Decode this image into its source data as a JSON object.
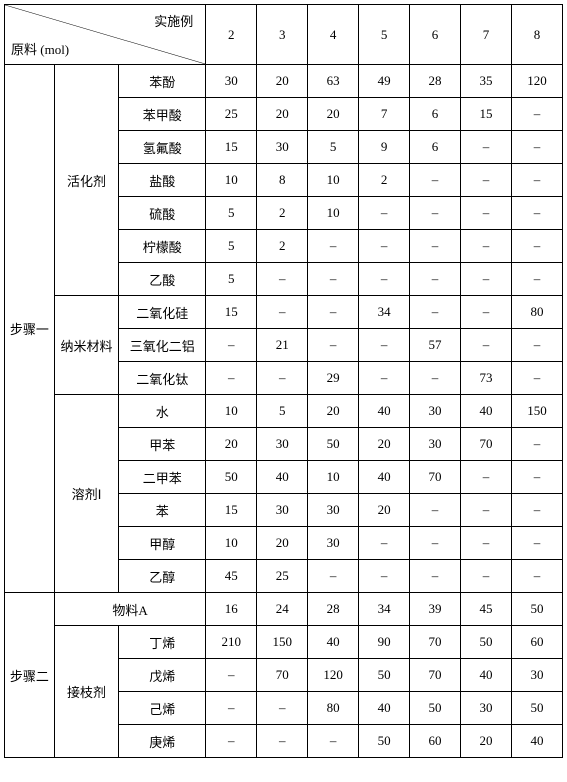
{
  "header": {
    "diagonal_top": "实施例",
    "diagonal_bottom": "原料 (mol)",
    "columns": [
      "2",
      "3",
      "4",
      "5",
      "6",
      "7",
      "8"
    ]
  },
  "steps": [
    {
      "label": "步骤一",
      "groups": [
        {
          "label": "活化剂",
          "items": [
            {
              "label": "苯酚",
              "values": [
                "30",
                "20",
                "63",
                "49",
                "28",
                "35",
                "120"
              ]
            },
            {
              "label": "苯甲酸",
              "values": [
                "25",
                "20",
                "20",
                "7",
                "6",
                "15",
                "–"
              ]
            },
            {
              "label": "氢氟酸",
              "values": [
                "15",
                "30",
                "5",
                "9",
                "6",
                "–",
                "–"
              ]
            },
            {
              "label": "盐酸",
              "values": [
                "10",
                "8",
                "10",
                "2",
                "–",
                "–",
                "–"
              ]
            },
            {
              "label": "硫酸",
              "values": [
                "5",
                "2",
                "10",
                "–",
                "–",
                "–",
                "–"
              ]
            },
            {
              "label": "柠檬酸",
              "values": [
                "5",
                "2",
                "–",
                "–",
                "–",
                "–",
                "–"
              ]
            },
            {
              "label": "乙酸",
              "values": [
                "5",
                "–",
                "–",
                "–",
                "–",
                "–",
                "–"
              ]
            }
          ]
        },
        {
          "label": "纳米材料",
          "items": [
            {
              "label": "二氧化硅",
              "values": [
                "15",
                "–",
                "–",
                "34",
                "–",
                "–",
                "80"
              ]
            },
            {
              "label": "三氧化二铝",
              "values": [
                "–",
                "21",
                "–",
                "–",
                "57",
                "–",
                "–"
              ]
            },
            {
              "label": "二氧化钛",
              "values": [
                "–",
                "–",
                "29",
                "–",
                "–",
                "73",
                "–"
              ]
            }
          ]
        },
        {
          "label": "溶剂Ⅰ",
          "items": [
            {
              "label": "水",
              "values": [
                "10",
                "5",
                "20",
                "40",
                "30",
                "40",
                "150"
              ]
            },
            {
              "label": "甲苯",
              "values": [
                "20",
                "30",
                "50",
                "20",
                "30",
                "70",
                "–"
              ]
            },
            {
              "label": "二甲苯",
              "values": [
                "50",
                "40",
                "10",
                "40",
                "70",
                "–",
                "–"
              ]
            },
            {
              "label": "苯",
              "values": [
                "15",
                "30",
                "30",
                "20",
                "–",
                "–",
                "–"
              ]
            },
            {
              "label": "甲醇",
              "values": [
                "10",
                "20",
                "30",
                "–",
                "–",
                "–",
                "–"
              ]
            },
            {
              "label": "乙醇",
              "values": [
                "45",
                "25",
                "–",
                "–",
                "–",
                "–",
                "–"
              ]
            }
          ]
        }
      ]
    },
    {
      "label": "步骤二",
      "spanRow": {
        "label": "物料A",
        "values": [
          "16",
          "24",
          "28",
          "34",
          "39",
          "45",
          "50"
        ]
      },
      "groups": [
        {
          "label": "接枝剂",
          "items": [
            {
              "label": "丁烯",
              "values": [
                "210",
                "150",
                "40",
                "90",
                "70",
                "50",
                "60"
              ]
            },
            {
              "label": "戊烯",
              "values": [
                "–",
                "70",
                "120",
                "50",
                "70",
                "40",
                "30"
              ]
            },
            {
              "label": "己烯",
              "values": [
                "–",
                "–",
                "80",
                "40",
                "50",
                "30",
                "50"
              ]
            },
            {
              "label": "庚烯",
              "values": [
                "–",
                "–",
                "–",
                "50",
                "60",
                "20",
                "40"
              ]
            }
          ]
        }
      ]
    }
  ]
}
